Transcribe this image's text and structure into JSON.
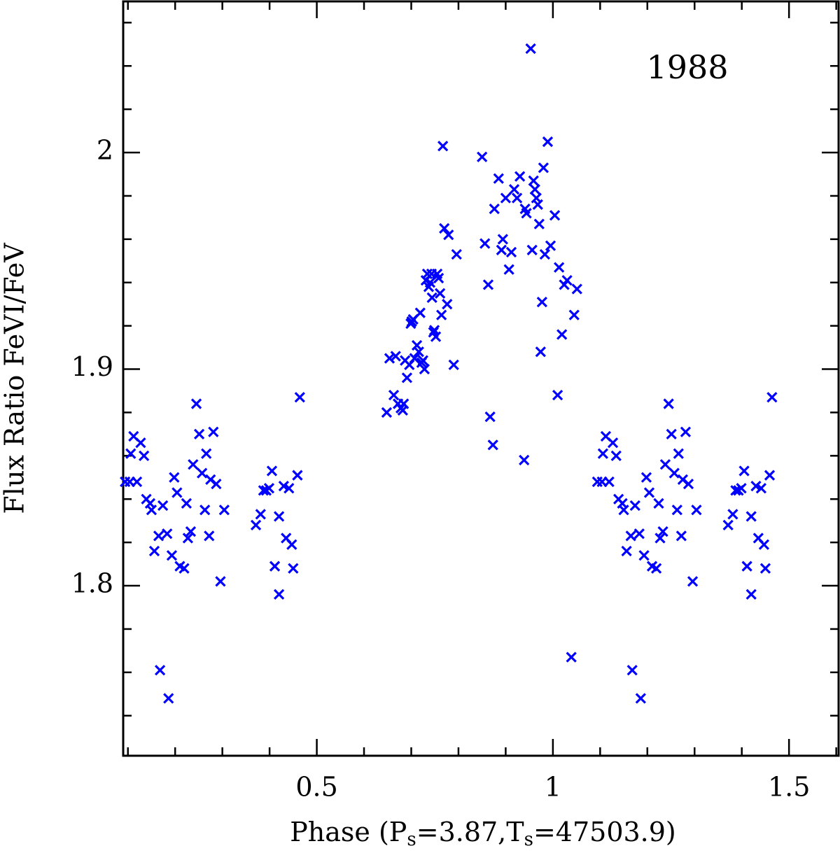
{
  "chart_data": {
    "type": "scatter",
    "annotation": "1988",
    "ylabel": "Flux Ratio FeVI/FeV",
    "xlabel_parts": [
      {
        "text": "Phase (P"
      },
      {
        "text": "s",
        "sub": true
      },
      {
        "text": "=3.87,T"
      },
      {
        "text": "s",
        "sub": true
      },
      {
        "text": "=47503.9)"
      }
    ],
    "color": "#0000ff",
    "xlim": [
      0.09,
      1.605
    ],
    "ylim": [
      1.7215,
      2.0698
    ],
    "xticks": [
      0.5,
      1,
      1.5
    ],
    "yticks": [
      1.8,
      1.9,
      2
    ],
    "xminor_ticks": [
      0.1,
      0.2,
      0.3,
      0.4,
      0.6,
      0.7,
      0.8,
      0.9,
      1.1,
      1.2,
      1.3,
      1.4,
      1.6
    ],
    "yminor_ticks": [
      1.74,
      1.76,
      1.78,
      1.82,
      1.84,
      1.86,
      1.88,
      1.92,
      1.94,
      1.96,
      1.98,
      2.02,
      2.04,
      2.06
    ],
    "x": [
      0.094,
      0.106,
      0.112,
      0.104,
      0.119,
      0.127,
      0.134,
      0.139,
      0.147,
      0.15,
      0.156,
      0.165,
      0.174,
      0.183,
      0.193,
      0.198,
      0.204,
      0.21,
      0.219,
      0.224,
      0.227,
      0.233,
      0.238,
      0.245,
      0.251,
      0.257,
      0.263,
      0.266,
      0.272,
      0.275,
      0.281,
      0.287,
      0.296,
      0.304,
      0.168,
      0.186,
      0.371,
      0.381,
      0.387,
      0.393,
      0.399,
      0.405,
      0.411,
      0.42,
      0.42,
      0.43,
      0.435,
      0.441,
      0.447,
      0.45,
      0.459,
      0.464,
      0.648,
      0.654,
      0.663,
      0.667,
      0.672,
      0.678,
      0.682,
      0.684,
      0.687,
      0.691,
      0.696,
      0.699,
      0.701,
      0.704,
      0.707,
      0.712,
      0.716,
      0.719,
      0.722,
      0.725,
      0.728,
      0.731,
      0.734,
      0.737,
      0.74,
      0.743,
      0.744,
      0.747,
      0.749,
      0.752,
      0.755,
      0.758,
      0.761,
      0.764,
      0.767,
      0.77,
      0.779,
      0.776,
      0.79,
      0.796,
      0.85,
      0.856,
      0.863,
      0.867,
      0.873,
      0.876,
      0.885,
      0.891,
      0.894,
      0.9,
      0.907,
      0.912,
      0.918,
      0.924,
      0.93,
      0.939,
      0.941,
      0.944,
      0.953,
      0.956,
      0.959,
      0.962,
      0.965,
      0.968,
      0.971,
      0.974,
      0.977,
      0.98,
      0.983,
      0.989,
      0.995,
      1.004,
      1.01,
      1.013,
      1.019,
      1.024,
      1.03,
      1.039,
      1.045,
      1.051,
      1.094,
      1.106,
      1.112,
      1.104,
      1.119,
      1.127,
      1.134,
      1.139,
      1.147,
      1.15,
      1.156,
      1.165,
      1.174,
      1.183,
      1.193,
      1.198,
      1.204,
      1.21,
      1.219,
      1.224,
      1.227,
      1.233,
      1.238,
      1.245,
      1.251,
      1.257,
      1.263,
      1.266,
      1.272,
      1.275,
      1.281,
      1.287,
      1.296,
      1.304,
      1.168,
      1.186,
      1.371,
      1.381,
      1.387,
      1.393,
      1.399,
      1.405,
      1.411,
      1.42,
      1.42,
      1.43,
      1.435,
      1.441,
      1.447,
      1.45,
      1.459,
      1.464
    ],
    "values": [
      1.848,
      1.861,
      1.869,
      1.848,
      1.848,
      1.866,
      1.86,
      1.84,
      1.838,
      1.835,
      1.816,
      1.823,
      1.837,
      1.824,
      1.814,
      1.85,
      1.843,
      1.809,
      1.808,
      1.838,
      1.822,
      1.825,
      1.856,
      1.884,
      1.87,
      1.852,
      1.835,
      1.861,
      1.823,
      1.849,
      1.871,
      1.847,
      1.802,
      1.835,
      1.761,
      1.748,
      1.828,
      1.833,
      1.844,
      1.844,
      1.845,
      1.853,
      1.809,
      1.832,
      1.796,
      1.846,
      1.822,
      1.845,
      1.819,
      1.808,
      1.851,
      1.887,
      1.88,
      1.905,
      1.888,
      1.906,
      1.884,
      1.882,
      1.881,
      1.884,
      1.904,
      1.896,
      1.902,
      1.921,
      1.922,
      1.923,
      1.905,
      1.911,
      1.908,
      1.926,
      1.903,
      1.904,
      1.9,
      1.941,
      1.944,
      1.938,
      1.94,
      1.944,
      1.933,
      1.917,
      1.918,
      1.915,
      1.944,
      1.942,
      1.935,
      1.925,
      2.003,
      1.965,
      1.962,
      1.93,
      1.902,
      1.953,
      1.998,
      1.958,
      1.939,
      1.878,
      1.865,
      1.974,
      1.988,
      1.955,
      1.96,
      1.979,
      1.946,
      1.954,
      1.983,
      1.979,
      1.989,
      1.858,
      1.974,
      1.972,
      2.048,
      1.955,
      1.987,
      1.983,
      1.979,
      1.976,
      1.967,
      1.908,
      1.931,
      1.993,
      1.953,
      2.005,
      1.957,
      1.971,
      1.888,
      1.947,
      1.916,
      1.939,
      1.941,
      1.767,
      1.925,
      1.937,
      1.848,
      1.861,
      1.869,
      1.848,
      1.848,
      1.866,
      1.86,
      1.84,
      1.838,
      1.835,
      1.816,
      1.823,
      1.837,
      1.824,
      1.814,
      1.85,
      1.843,
      1.809,
      1.808,
      1.838,
      1.822,
      1.825,
      1.856,
      1.884,
      1.87,
      1.852,
      1.835,
      1.861,
      1.823,
      1.849,
      1.871,
      1.847,
      1.802,
      1.835,
      1.761,
      1.748,
      1.828,
      1.833,
      1.844,
      1.844,
      1.845,
      1.853,
      1.809,
      1.832,
      1.796,
      1.846,
      1.822,
      1.845,
      1.819,
      1.808,
      1.851,
      1.887
    ]
  }
}
